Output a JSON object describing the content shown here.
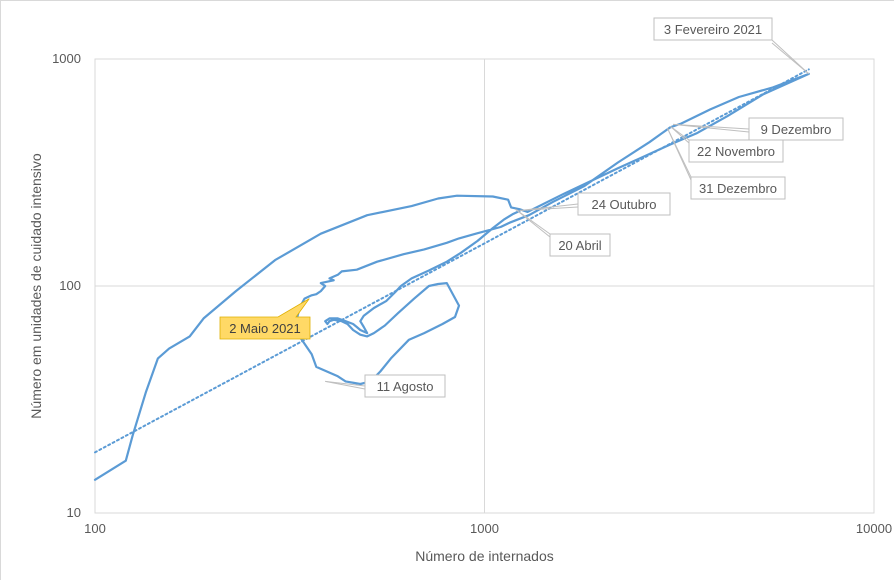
{
  "chart_data": {
    "type": "line",
    "xscale": "log",
    "yscale": "log",
    "xlim": [
      100,
      10000
    ],
    "ylim": [
      10,
      1000
    ],
    "grid": true,
    "xlabel": "Número de internados",
    "ylabel": "Número em unidades de cuidado intensivo",
    "x_tick_labels": [
      "100",
      "1000",
      "10000"
    ],
    "y_tick_labels": [
      "10",
      "100",
      "1000"
    ],
    "series_color": "#5b9bd5",
    "highlight_color": "#ffd966",
    "series": [
      {
        "type": "line",
        "x": [
          100,
          120,
          125,
          135,
          145,
          155,
          175,
          190,
          230,
          290,
          380,
          500,
          650,
          760,
          850,
          1050,
          1150,
          1170,
          1230,
          1290,
          1600,
          2200,
          3000,
          3500,
          4200,
          5200,
          6800,
          5500,
          4500,
          3800,
          3200,
          3000,
          2850,
          2650,
          2200,
          1800,
          1500,
          1300,
          1160,
          1100,
          950,
          860,
          800,
          700,
          620,
          530,
          470,
          430,
          420,
          400,
          410,
          380,
          390,
          380,
          370,
          360,
          345,
          335,
          330,
          335,
          360,
          370,
          420,
          440,
          480,
          510,
          540,
          575,
          640,
          700,
          780,
          840,
          860,
          800,
          760,
          720,
          660,
          600,
          555,
          520,
          500,
          480,
          460,
          445,
          430,
          410,
          400,
          395,
          390,
          400,
          420,
          440,
          460,
          470,
          480,
          500,
          490,
          480,
          490,
          520,
          560,
          590,
          610,
          650,
          720,
          800,
          870,
          960,
          1050,
          1120,
          1180,
          1230
        ],
        "y": [
          14,
          17,
          22,
          34,
          48,
          53,
          60,
          72,
          95,
          130,
          170,
          205,
          225,
          243,
          250,
          248,
          240,
          222,
          218,
          212,
          255,
          330,
          420,
          470,
          560,
          700,
          860,
          750,
          680,
          600,
          520,
          500,
          470,
          430,
          350,
          275,
          235,
          205,
          190,
          182,
          170,
          162,
          155,
          145,
          138,
          128,
          118,
          116,
          112,
          108,
          106,
          103,
          100,
          95,
          92,
          91,
          88,
          80,
          72,
          60,
          50,
          44,
          40,
          38,
          37,
          38,
          42,
          48,
          58,
          62,
          68,
          73,
          82,
          103,
          102,
          100,
          88,
          76,
          67,
          62,
          60,
          61,
          64,
          68,
          70,
          71,
          70,
          68,
          70,
          72,
          72,
          70,
          68,
          66,
          64,
          62,
          66,
          70,
          74,
          80,
          86,
          94,
          100,
          108,
          117,
          128,
          140,
          158,
          180,
          196,
          207,
          214
        ]
      },
      {
        "type": "trendline",
        "style": "dotted",
        "x": [
          100,
          6800
        ],
        "y": [
          18.5,
          900
        ]
      }
    ],
    "annotations": [
      {
        "text": "3 Fevereiro 2021",
        "x": 6800,
        "y": 860,
        "highlight": false
      },
      {
        "text": "9 Dezembro",
        "x": 3050,
        "y": 515,
        "highlight": false
      },
      {
        "text": "22 Novembro",
        "x": 3000,
        "y": 505,
        "highlight": false
      },
      {
        "text": "31 Dezembro",
        "x": 2950,
        "y": 495,
        "highlight": false
      },
      {
        "text": "24 Outubro",
        "x": 1230,
        "y": 215,
        "highlight": false
      },
      {
        "text": "20 Abril",
        "x": 1200,
        "y": 218,
        "highlight": false
      },
      {
        "text": "2 Maio 2021",
        "x": 355,
        "y": 88,
        "highlight": true
      },
      {
        "text": "11 Agosto",
        "x": 390,
        "y": 38,
        "highlight": false
      }
    ]
  }
}
